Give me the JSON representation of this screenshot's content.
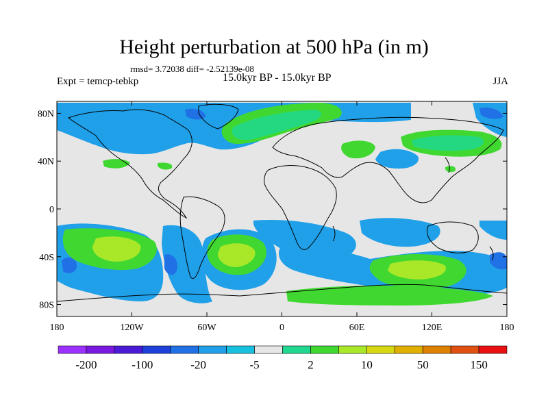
{
  "title": "Height perturbation at 500 hPa (in m)",
  "stats": "rmsd= 3.72038 diff= -2.52139e-08",
  "experiment": "Expt = temcp-tebkp",
  "period": "15.0kyr BP - 15.0kyr BP",
  "season": "JJA",
  "map": {
    "lon_range": [
      -180,
      180
    ],
    "lat_range": [
      -90,
      90
    ],
    "lat_ticks": [
      {
        "value": 80,
        "label": "80N"
      },
      {
        "value": 40,
        "label": "40N"
      },
      {
        "value": 0,
        "label": "0"
      },
      {
        "value": -40,
        "label": "40S"
      },
      {
        "value": -80,
        "label": "80S"
      }
    ],
    "lon_ticks": [
      {
        "value": -180,
        "label": "180"
      },
      {
        "value": -120,
        "label": "120W"
      },
      {
        "value": -60,
        "label": "60W"
      },
      {
        "value": 0,
        "label": "0"
      },
      {
        "value": 60,
        "label": "60E"
      },
      {
        "value": 120,
        "label": "120E"
      },
      {
        "value": 180,
        "label": "180"
      }
    ],
    "background_color": "#e6e6e6"
  },
  "colorbar": {
    "colors": [
      "#9b30ff",
      "#7a18e0",
      "#4a1ad6",
      "#1e40d8",
      "#2070e6",
      "#20a0e8",
      "#18c0e0",
      "#e6e6e6",
      "#20d890",
      "#40d830",
      "#a8e828",
      "#d8d810",
      "#e0b000",
      "#e08000",
      "#e05010",
      "#e81010"
    ],
    "labels": [
      {
        "text": "-200",
        "after_box": 1
      },
      {
        "text": "-100",
        "after_box": 3
      },
      {
        "text": "-20",
        "after_box": 5
      },
      {
        "text": "-5",
        "after_box": 7
      },
      {
        "text": "2",
        "after_box": 9
      },
      {
        "text": "10",
        "after_box": 11
      },
      {
        "text": "50",
        "after_box": 13
      },
      {
        "text": "150",
        "after_box": 15
      }
    ]
  }
}
